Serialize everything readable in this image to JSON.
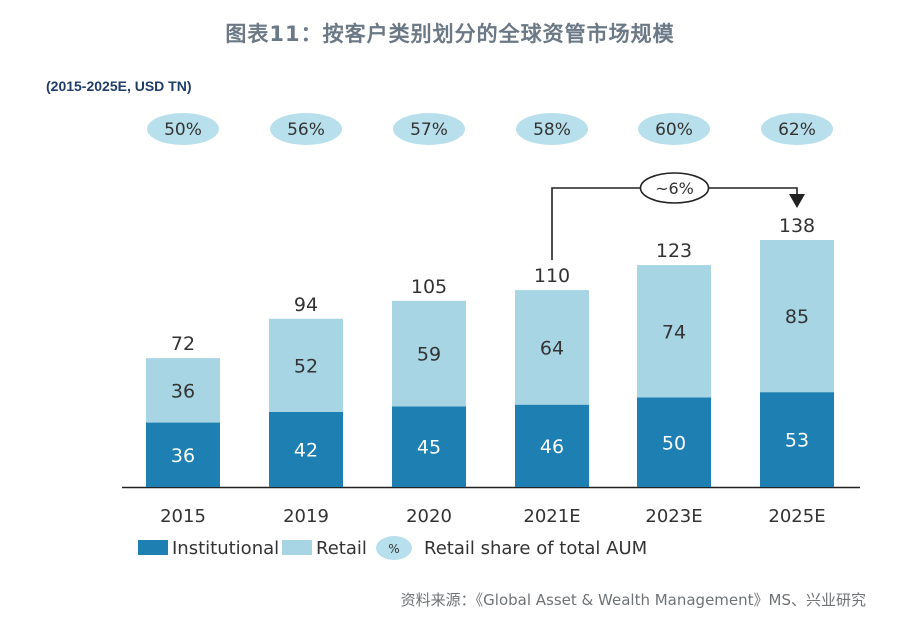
{
  "title": "图表11：按客户类别划分的全球资管市场规模",
  "source": "资料来源：《Global Asset & Wealth Management》MS、兴业研究",
  "colors": {
    "institutional": "#1d7fb2",
    "retail": "#a7d5e4",
    "share_bubble": "#b8e0ec",
    "axis": "#222222",
    "text": "#333333"
  },
  "chart_data": {
    "type": "bar",
    "stacked": true,
    "subtitle": "(2015-2025E, USD TN)",
    "categories": [
      "2015",
      "2019",
      "2020",
      "2021E",
      "2023E",
      "2025E"
    ],
    "series": [
      {
        "name": "Institutional",
        "values": [
          36,
          42,
          45,
          46,
          50,
          53
        ]
      },
      {
        "name": "Retail",
        "values": [
          36,
          52,
          59,
          64,
          74,
          85
        ]
      }
    ],
    "totals": [
      72,
      94,
      105,
      110,
      123,
      138
    ],
    "retail_share": [
      "50%",
      "56%",
      "57%",
      "58%",
      "60%",
      "62%"
    ],
    "ylim": [
      0,
      138
    ],
    "grid": false,
    "annotation": {
      "label": "~6%",
      "from": "2021E",
      "to": "2025E"
    },
    "legend": {
      "position": "bottom-left",
      "items": [
        "Institutional",
        "Retail"
      ],
      "share_symbol": "%",
      "share_label": "Retail share of total AUM"
    }
  }
}
